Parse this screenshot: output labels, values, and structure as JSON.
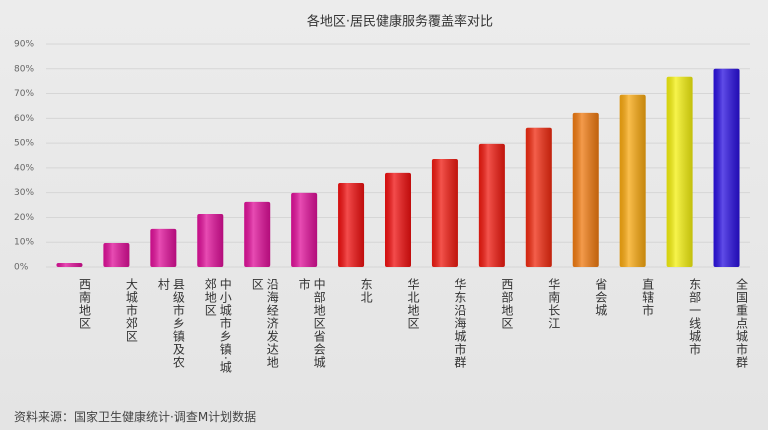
{
  "chart_data": {
    "type": "bar",
    "title": "各地区·居民健康服务覆盖率对比",
    "categories": [
      "西南地区",
      "大城市郊区",
      "县级市乡镇及农村",
      "中小城市乡镇·城郊地区",
      "沿海经济发达地区",
      "中部地区省会城市",
      "东北",
      "华北地区",
      "华东沿海城市群",
      "西部地区",
      "华南长江",
      "省会城",
      "直辖市",
      "东部一线城市",
      "全国重点城市群"
    ],
    "values": [
      1.6,
      9.7,
      15.4,
      21.4,
      26.3,
      29.9,
      33.9,
      38.0,
      43.6,
      49.7,
      56.2,
      62.2,
      69.5,
      76.8,
      80.0
    ],
    "colors": [
      "#e0109a",
      "#e0109a",
      "#e0109a",
      "#e0109a",
      "#e0109a",
      "#e0109a",
      "#f01010",
      "#f01010",
      "#f01a10",
      "#f01a10",
      "#f02a10",
      "#f07a10",
      "#f8a810",
      "#f4f010",
      "#2a10e0"
    ],
    "ylim": [
      0,
      90
    ],
    "yticks": [
      {
        "value": 0,
        "label": "0%"
      },
      {
        "value": 10,
        "label": "10%"
      },
      {
        "value": 20,
        "label": "20%"
      },
      {
        "value": 30,
        "label": "30%"
      },
      {
        "value": 40,
        "label": "40%"
      },
      {
        "value": 50,
        "label": "50%"
      },
      {
        "value": 60,
        "label": "60%"
      },
      {
        "value": 70,
        "label": "70%"
      },
      {
        "value": 80,
        "label": "80%"
      },
      {
        "value": 90,
        "label": "90%"
      }
    ],
    "grid": true,
    "source": "资料来源：国家卫生健康统计·调查M计划数据"
  }
}
